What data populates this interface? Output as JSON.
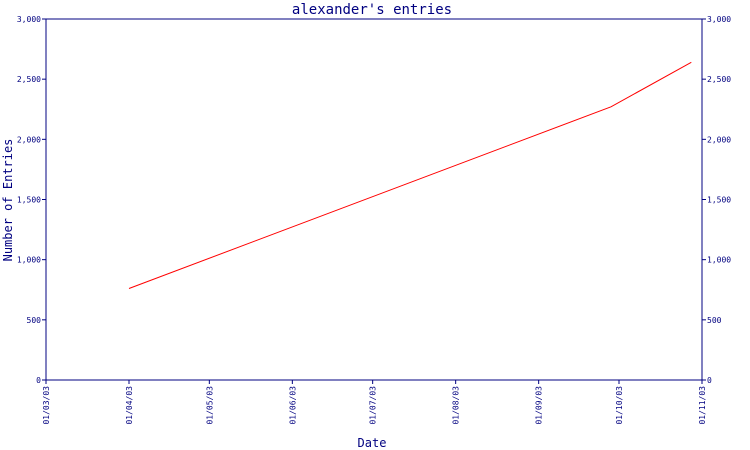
{
  "chart_data": {
    "type": "line",
    "title": "alexander's entries",
    "xlabel": "Date",
    "ylabel": "Number of Entries",
    "x_ticks": [
      "01/03/03",
      "01/04/03",
      "01/05/03",
      "01/06/03",
      "01/07/03",
      "01/08/03",
      "01/09/03",
      "01/10/03",
      "01/11/03"
    ],
    "y_ticks": [
      "0",
      "500",
      "1,000",
      "1,500",
      "2,000",
      "2,500",
      "3,000"
    ],
    "y_tick_values": [
      0,
      500,
      1000,
      1500,
      2000,
      2500,
      3000
    ],
    "ylim": [
      0,
      3000
    ],
    "xlim": [
      "2003-03-01",
      "2003-11-01"
    ],
    "grid": false,
    "series": [
      {
        "color": "#ff0000",
        "points": [
          {
            "x": "2003-04-01",
            "y": 760
          },
          {
            "x": "2003-09-28",
            "y": 2270
          },
          {
            "x": "2003-10-28",
            "y": 2640
          }
        ]
      }
    ]
  },
  "colors": {
    "axis": "#000080",
    "line": "#ff0000",
    "background": "#ffffff"
  }
}
